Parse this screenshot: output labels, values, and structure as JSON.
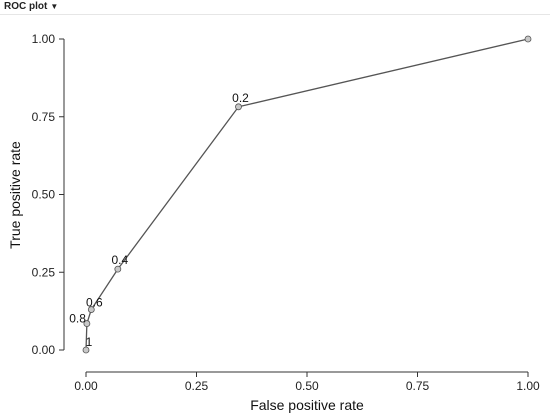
{
  "panel": {
    "title": "ROC plot",
    "caret": "▼"
  },
  "chart_data": {
    "type": "line",
    "title": "",
    "xlabel": "False positive rate",
    "ylabel": "True positive rate",
    "xlim": [
      0,
      1
    ],
    "ylim": [
      0,
      1
    ],
    "xticks": [
      "0.00",
      "0.25",
      "0.50",
      "0.75",
      "1.00"
    ],
    "yticks": [
      "0.00",
      "0.25",
      "0.50",
      "0.75",
      "1.00"
    ],
    "grid": false,
    "legend": "none",
    "line_color": "#555555",
    "point_fill": "#c8c8c8",
    "series": [
      {
        "points": [
          {
            "x": 0.0,
            "y": 0.0,
            "label": "1"
          },
          {
            "x": 0.002,
            "y": 0.085,
            "label": "0.8"
          },
          {
            "x": 0.012,
            "y": 0.13,
            "label": "0.6"
          },
          {
            "x": 0.072,
            "y": 0.26,
            "label": "0.4"
          },
          {
            "x": 0.345,
            "y": 0.782,
            "label": "0.2"
          },
          {
            "x": 1.0,
            "y": 1.0,
            "label": ""
          }
        ]
      }
    ]
  }
}
